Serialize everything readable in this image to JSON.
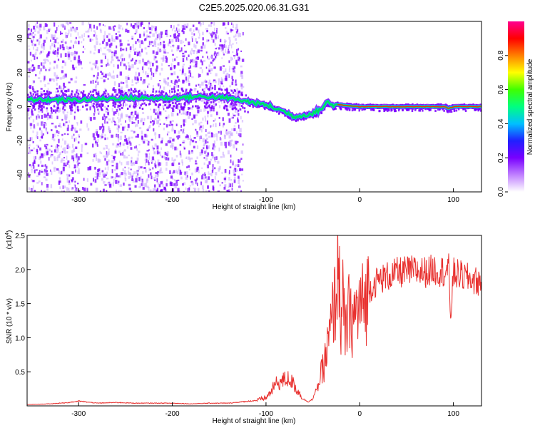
{
  "title": "C2E5.2025.020.06.31.G31",
  "colors": {
    "snr_line": "#e8302e",
    "track_core": "#ff2a00",
    "track_mid": "#00e060",
    "track_edge": "#00c8ff",
    "scatter": "#7b00ff",
    "scatter_faint": "#c9a6ff"
  },
  "chart_data": [
    {
      "type": "heatmap",
      "title": "C2E5.2025.020.06.31.G31",
      "xlabel": "Height of straight line (km)",
      "ylabel": "Frequency (Hz)",
      "xlim": [
        -355,
        130
      ],
      "ylim": [
        -50,
        50
      ],
      "x_ticks": [
        -300,
        -200,
        -100,
        0,
        100
      ],
      "y_ticks": [
        -40,
        -20,
        0,
        20,
        40
      ],
      "grid": false,
      "track": {
        "x": [
          -355,
          -300,
          -250,
          -200,
          -170,
          -140,
          -120,
          -100,
          -80,
          -70,
          -60,
          -50,
          -40,
          -35,
          -30,
          -20,
          0,
          20,
          50,
          90,
          95,
          100,
          130
        ],
        "y": [
          4,
          4,
          5,
          5,
          6,
          5,
          3,
          1,
          -3,
          -6,
          -5,
          -4,
          -1,
          3,
          1,
          1,
          0,
          0,
          0,
          0,
          -1,
          0,
          0
        ]
      },
      "colorbar": {
        "label": "Normalized spectral amplitude",
        "range": [
          0,
          1
        ],
        "ticks": [
          0.0,
          0.2,
          0.4,
          0.6,
          0.8
        ],
        "stops": [
          "#ffffff",
          "#c080ff",
          "#7800ff",
          "#2020ff",
          "#00c0ff",
          "#00ff80",
          "#40ff00",
          "#ffff00",
          "#ff8000",
          "#ff0000",
          "#ff0090"
        ]
      }
    },
    {
      "type": "line",
      "xlabel": "Height of straight line (km)",
      "ylabel": "SNR (10 * v/v)",
      "y_multiplier": "(x10",
      "y_multiplier_exp": "4",
      "xlim": [
        -355,
        130
      ],
      "ylim": [
        0,
        2.5
      ],
      "x_ticks": [
        -300,
        -200,
        -100,
        0,
        100
      ],
      "y_ticks": [
        0.5,
        1.0,
        1.5,
        2.0,
        2.5
      ],
      "grid": false,
      "series": [
        {
          "x": [
            -355,
            -330,
            -310,
            -300,
            -280,
            -260,
            -240,
            -220,
            -200,
            -180,
            -160,
            -140,
            -125,
            -110,
            -100,
            -95,
            -90,
            -85,
            -80,
            -75,
            -70,
            -65,
            -60,
            -55,
            -50,
            -45,
            -40,
            -35,
            -30,
            -25,
            -22,
            -20,
            -18,
            -15,
            -12,
            -10,
            -5,
            0,
            5,
            10,
            20,
            30,
            40,
            50,
            60,
            70,
            80,
            90,
            95,
            97,
            100,
            110,
            120,
            130
          ],
          "y": [
            0.02,
            0.03,
            0.05,
            0.07,
            0.04,
            0.05,
            0.04,
            0.04,
            0.04,
            0.03,
            0.04,
            0.04,
            0.06,
            0.08,
            0.12,
            0.2,
            0.32,
            0.35,
            0.38,
            0.4,
            0.3,
            0.2,
            0.1,
            0.06,
            0.1,
            0.3,
            0.5,
            0.8,
            1.2,
            1.7,
            2.2,
            1.1,
            1.5,
            1.0,
            1.4,
            1.2,
            1.35,
            1.45,
            1.5,
            1.7,
            1.85,
            1.9,
            1.95,
            1.97,
            1.98,
            1.96,
            2.0,
            1.97,
            2.0,
            1.3,
            1.95,
            1.9,
            1.85,
            1.8
          ]
        }
      ]
    }
  ]
}
